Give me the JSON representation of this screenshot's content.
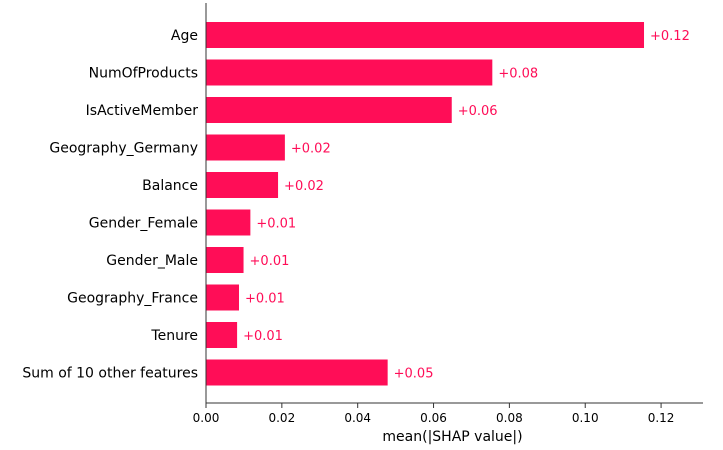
{
  "chart_data": {
    "type": "bar",
    "orientation": "horizontal",
    "categories": [
      "Age",
      "NumOfProducts",
      "IsActiveMember",
      "Geography_Germany",
      "Balance",
      "Gender_Female",
      "Gender_Male",
      "Geography_France",
      "Tenure",
      "Sum of 10 other features"
    ],
    "values": [
      0.1155,
      0.0755,
      0.0648,
      0.0208,
      0.019,
      0.0117,
      0.0099,
      0.0087,
      0.0082,
      0.0479
    ],
    "data_labels": [
      "+0.12",
      "+0.08",
      "+0.06",
      "+0.02",
      "+0.02",
      "+0.01",
      "+0.01",
      "+0.01",
      "+0.01",
      "+0.05"
    ],
    "title": "",
    "xlabel": "mean(|SHAP value|)",
    "ylabel": "",
    "xlim": [
      0.0,
      0.13
    ],
    "xticks": [
      0.0,
      0.02,
      0.04,
      0.06,
      0.08,
      0.1,
      0.12
    ],
    "xtick_labels": [
      "0.00",
      "0.02",
      "0.04",
      "0.06",
      "0.08",
      "0.10",
      "0.12"
    ],
    "grid": false,
    "legend": "none",
    "colors": {
      "bar": "#ff0d57",
      "label": "#ff0d57",
      "axis": "#333333"
    }
  }
}
